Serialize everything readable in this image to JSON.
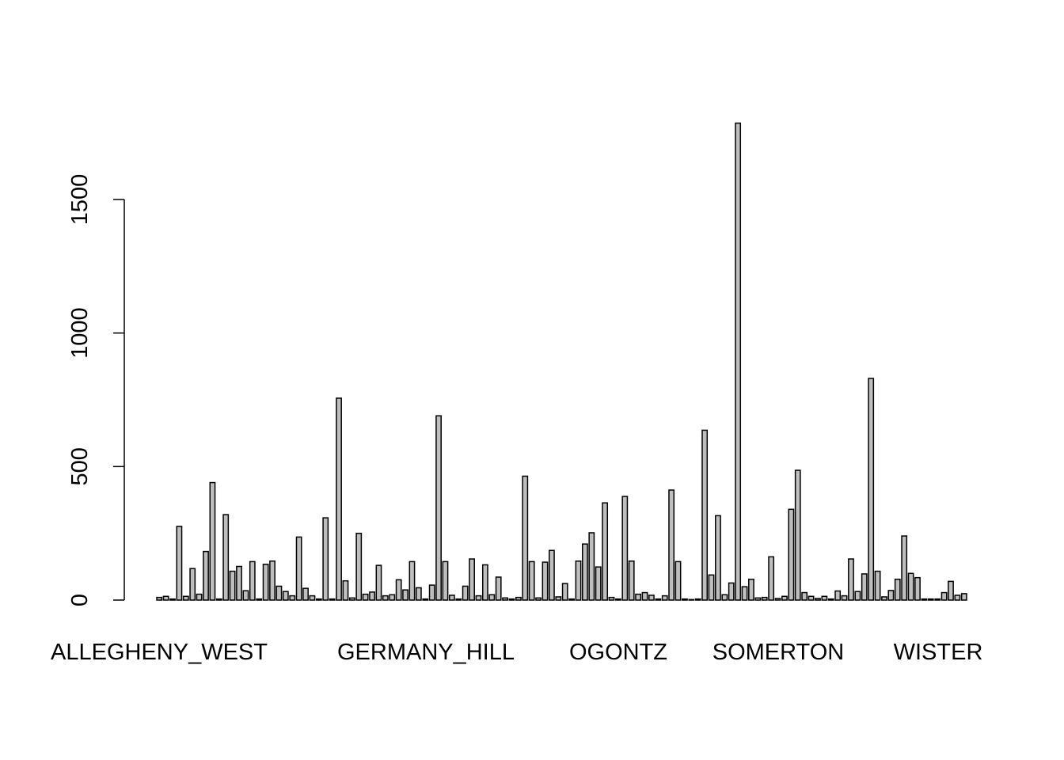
{
  "chart_data": {
    "type": "bar",
    "title": "",
    "xlabel": "",
    "ylabel": "",
    "ylim": [
      0,
      1800
    ],
    "yticks": [
      0,
      500,
      1000,
      1500
    ],
    "grid": false,
    "legend": "none",
    "bar_fill": "#bebebe",
    "bar_stroke": "#000000",
    "shown_category_labels": [
      "ALLEGHENY_WEST",
      "GERMANY_HILL",
      "OGONTZ",
      "SOMERTON",
      "WISTER"
    ],
    "values": [
      10,
      14,
      4,
      276,
      14,
      118,
      22,
      182,
      440,
      4,
      320,
      108,
      126,
      35,
      144,
      4,
      134,
      146,
      52,
      32,
      16,
      236,
      44,
      16,
      4,
      308,
      4,
      756,
      72,
      8,
      250,
      22,
      30,
      130,
      16,
      20,
      76,
      38,
      144,
      46,
      4,
      56,
      690,
      144,
      18,
      4,
      52,
      154,
      16,
      132,
      20,
      86,
      8,
      4,
      10,
      464,
      144,
      8,
      142,
      186,
      12,
      62,
      4,
      146,
      210,
      252,
      124,
      364,
      10,
      4,
      388,
      146,
      22,
      28,
      18,
      4,
      16,
      412,
      144,
      4,
      2,
      4,
      636,
      94,
      316,
      20,
      64,
      1786,
      50,
      78,
      8,
      10,
      162,
      6,
      14,
      340,
      486,
      28,
      14,
      6,
      14,
      4,
      34,
      16,
      154,
      32,
      98,
      830,
      108,
      12,
      36,
      78,
      240,
      100,
      84,
      4,
      4,
      4,
      28,
      70,
      18,
      24
    ]
  }
}
